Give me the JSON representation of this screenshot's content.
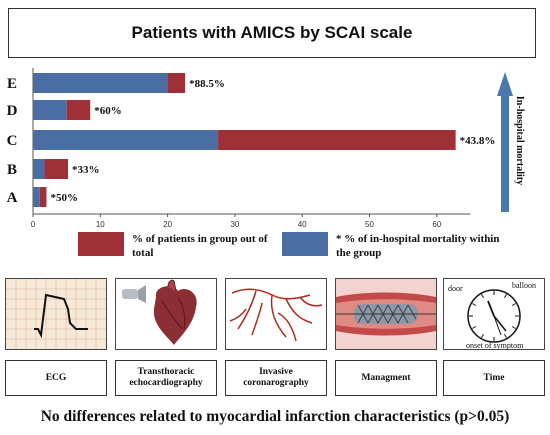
{
  "title": "Patients with AMICS by SCAI scale",
  "side_label": "In-hospital mortality",
  "colors": {
    "red": "#a03038",
    "blue": "#4a6ea3",
    "arrow": "#4a78ad"
  },
  "chart_data": {
    "type": "bar",
    "orientation": "horizontal",
    "stacked": true,
    "categories": [
      "E",
      "D",
      "C",
      "B",
      "A"
    ],
    "series": [
      {
        "name": "* % of in-hospital mortality within the group",
        "values": [
          20,
          5,
          27.5,
          1.7,
          1
        ],
        "color": "#4a6ea3"
      },
      {
        "name": "% of patients in group out of total",
        "values": [
          2.6,
          3.5,
          35.3,
          3.5,
          1
        ],
        "color": "#a03038"
      }
    ],
    "totals": [
      22.6,
      8.5,
      62.8,
      5.2,
      2
    ],
    "annotations": [
      "*88.5%",
      "*60%",
      "*43.8%",
      "*33%",
      "*50%"
    ],
    "x_ticks": [
      0,
      10,
      20,
      30,
      40,
      50,
      60
    ],
    "xlim": [
      0,
      65
    ],
    "grid": false,
    "legend_position": "bottom"
  },
  "legend": {
    "red_label": "% of patients in group out of total",
    "blue_label": "* % of in-hospital mortality within the group"
  },
  "panels": [
    {
      "label": "ECG",
      "icon": "ecg-icon"
    },
    {
      "label": "Transthoracic echocardiography",
      "icon": "heart-icon"
    },
    {
      "label": "Invasive coronarography",
      "icon": "coronary-icon"
    },
    {
      "label": "Managment",
      "icon": "stent-icon"
    },
    {
      "label": "Time",
      "icon": "clock-icon"
    }
  ],
  "clock_labels": {
    "door": "door",
    "balloon": "balloon",
    "onset": "onset of symptom"
  },
  "footer": "No differences related to myocardial infarction characteristics (p>0.05)"
}
